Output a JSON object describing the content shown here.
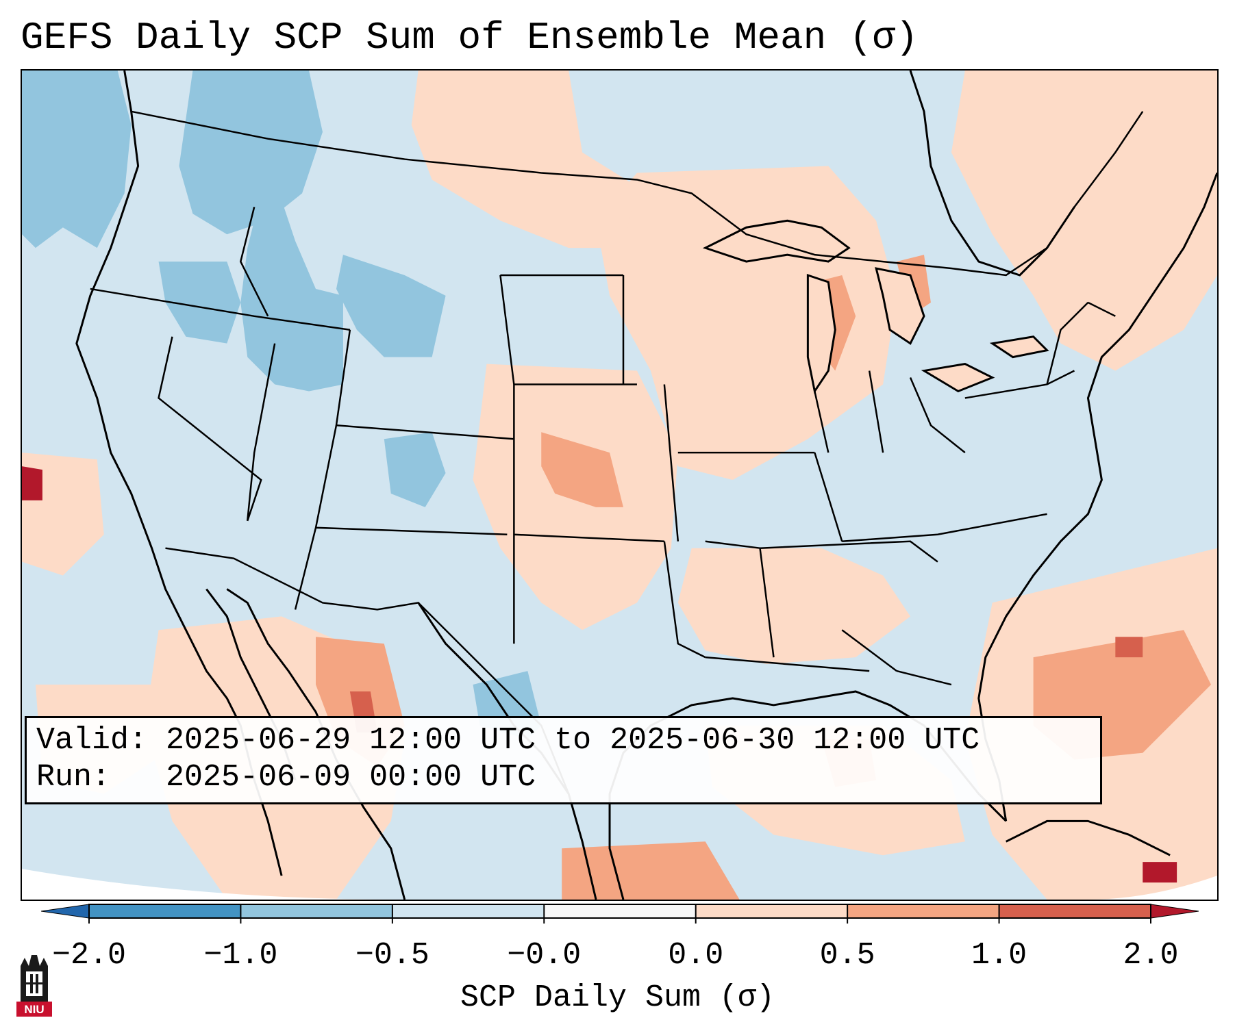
{
  "title": "GEFS Daily SCP Sum of Ensemble Mean (σ)",
  "info": {
    "valid_label": "Valid:",
    "valid_value": "2025-06-29 12:00 UTC to 2025-06-30 12:00 UTC",
    "run_label": "Run:",
    "run_value": "2025-06-09 00:00 UTC"
  },
  "colorbar": {
    "label": "SCP Daily Sum (σ)",
    "ticks": [
      "−2.0",
      "−1.0",
      "−0.5",
      "−0.0",
      "0.0",
      "0.5",
      "1.0",
      "2.0"
    ],
    "bins": [
      {
        "from": -2.0,
        "to": -1.0,
        "color": "#4393c3"
      },
      {
        "from": -1.0,
        "to": -0.5,
        "color": "#92c5de"
      },
      {
        "from": -0.5,
        "to": -0.0,
        "color": "#d1e5f0"
      },
      {
        "from": -0.0,
        "to": 0.0,
        "color": "#f7f7f7"
      },
      {
        "from": 0.0,
        "to": 0.5,
        "color": "#fddbc7"
      },
      {
        "from": 0.5,
        "to": 1.0,
        "color": "#f4a582"
      },
      {
        "from": 1.0,
        "to": 2.0,
        "color": "#d6604d"
      }
    ],
    "under_color": "#2166ac",
    "over_color": "#b2182b",
    "extend": "both"
  },
  "colors": {
    "background": "#d2e5f0",
    "border": "#000000"
  },
  "logo": {
    "text": "NIU",
    "icon": "university-tower-icon"
  }
}
